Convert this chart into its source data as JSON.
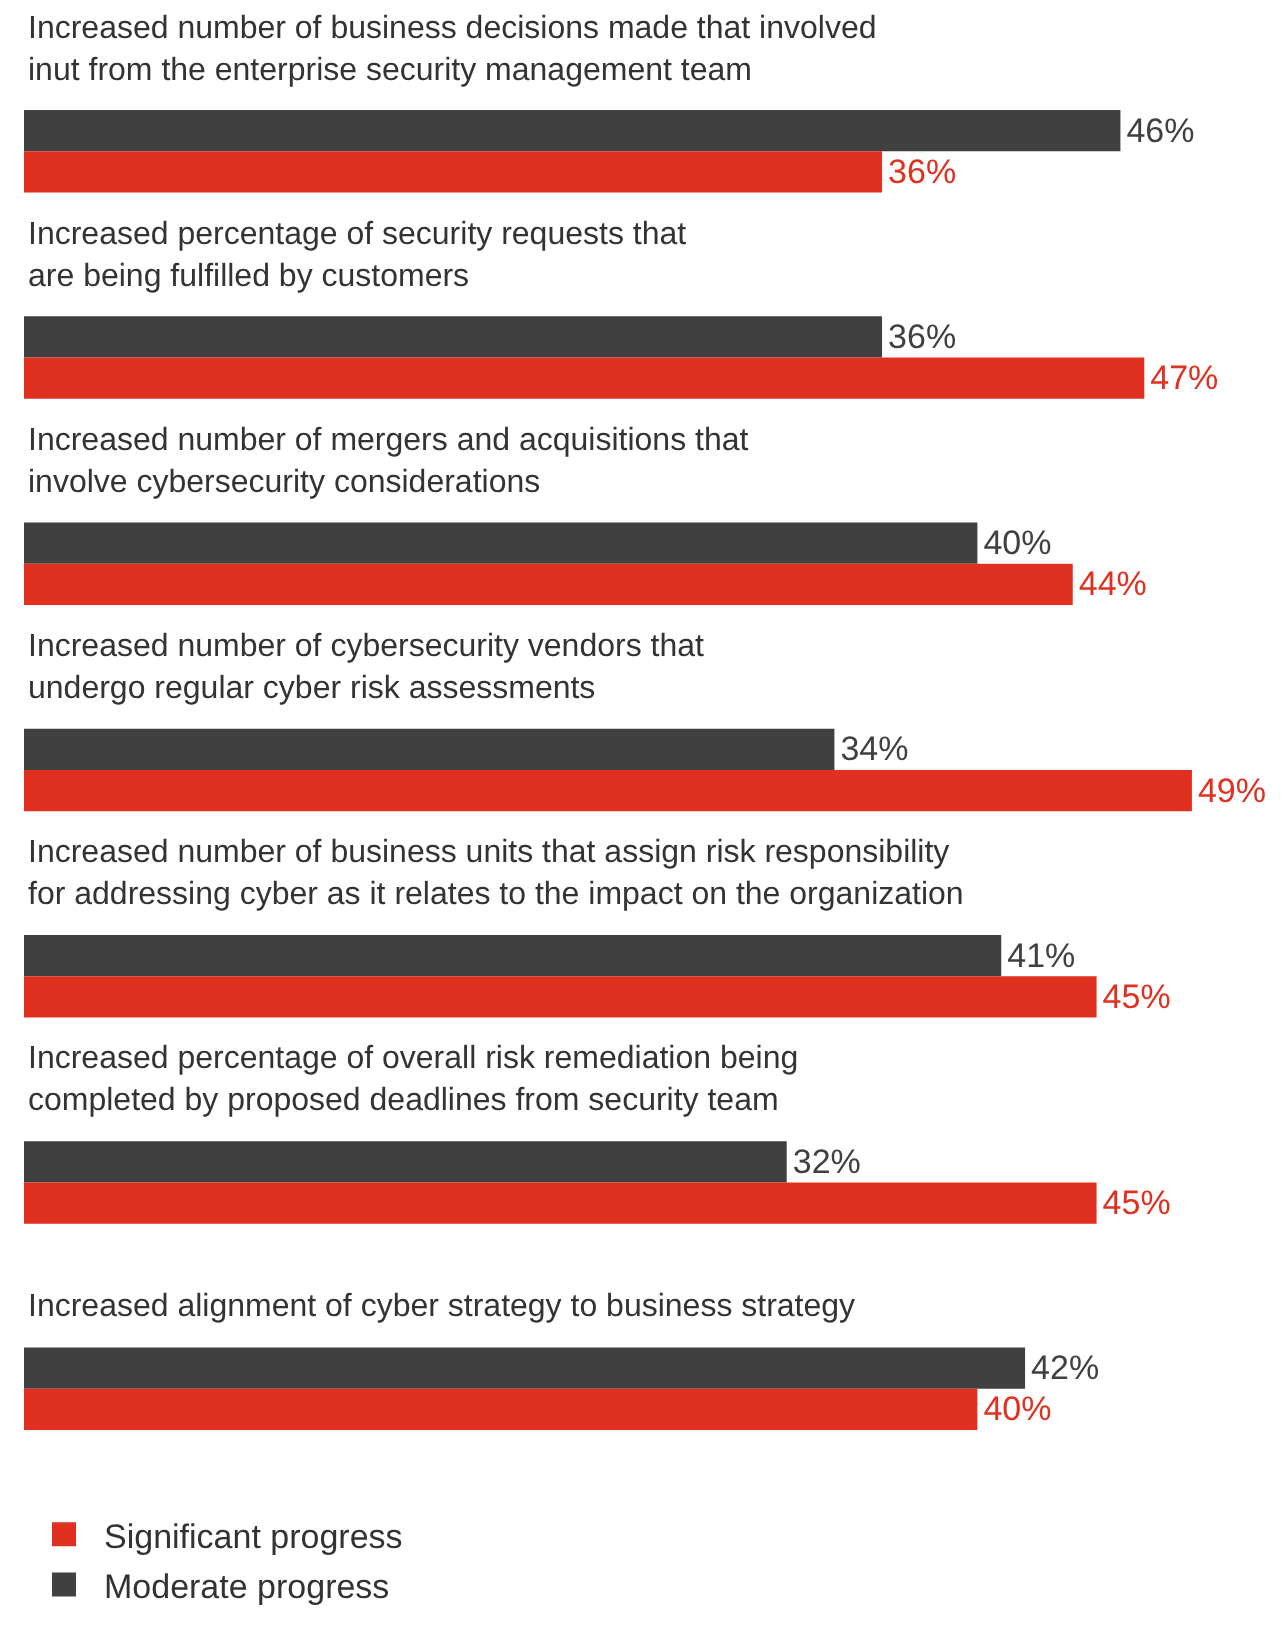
{
  "chart_data": {
    "type": "bar",
    "orientation": "horizontal",
    "legend": "bottom",
    "data_labels": true,
    "categories": [
      "Increased number of business decisions made that involved\ninut from the enterprise security management team",
      "Increased percentage of security requests that\nare being fulfilled by customers",
      "Increased number of mergers and acquisitions that\ninvolve cybersecurity considerations",
      "Increased number of cybersecurity vendors that\nundergo regular cyber risk assessments",
      "Increased number of business units that assign risk responsibility\nfor addressing cyber as it relates to the impact on the organization",
      "Increased percentage of overall risk remediation being\ncompleted by proposed deadlines from security team",
      "Increased alignment of cyber strategy to business strategy"
    ],
    "series": [
      {
        "name": "Moderate progress",
        "color": "#404040",
        "values": [
          46,
          36,
          40,
          34,
          41,
          32,
          42
        ],
        "value_labels": [
          "46%",
          "36%",
          "40%",
          "34%",
          "41%",
          "32%",
          "42%"
        ]
      },
      {
        "name": "Significant progress",
        "color": "#e03020",
        "values": [
          36,
          47,
          44,
          49,
          45,
          45,
          40
        ],
        "value_labels": [
          "36%",
          "47%",
          "44%",
          "49%",
          "45%",
          "45%",
          "40%"
        ]
      }
    ]
  }
}
